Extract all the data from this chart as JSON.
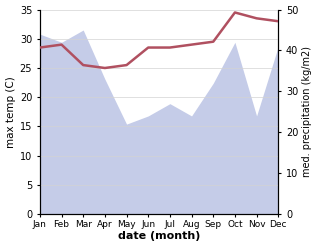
{
  "months": [
    "Jan",
    "Feb",
    "Mar",
    "Apr",
    "May",
    "Jun",
    "Jul",
    "Aug",
    "Sep",
    "Oct",
    "Nov",
    "Dec"
  ],
  "temperature": [
    28.5,
    29.0,
    25.5,
    25.0,
    25.5,
    28.5,
    28.5,
    29.0,
    29.5,
    34.5,
    33.5,
    33.0
  ],
  "precipitation": [
    44.0,
    42.0,
    45.0,
    33.0,
    22.0,
    24.0,
    27.0,
    24.0,
    32.0,
    42.0,
    24.0,
    41.0
  ],
  "temp_color": "#b05060",
  "precip_fill_color": "#c5cce8",
  "ylim_temp": [
    0,
    35
  ],
  "ylim_precip": [
    0,
    50
  ],
  "ylabel_left": "max temp (C)",
  "ylabel_right": "med. precipitation (kg/m2)",
  "xlabel": "date (month)",
  "yticks_left": [
    0,
    5,
    10,
    15,
    20,
    25,
    30,
    35
  ],
  "yticks_right": [
    0,
    10,
    20,
    30,
    40,
    50
  ],
  "background_color": "#ffffff"
}
